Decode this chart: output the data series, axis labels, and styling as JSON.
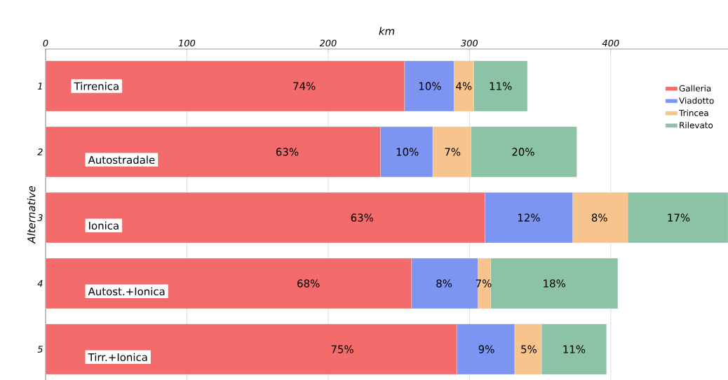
{
  "chart_data": {
    "type": "bar",
    "orientation": "horizontal",
    "stacked": true,
    "xlabel": "km",
    "ylabel": "Alternative",
    "categories": [
      "1",
      "2",
      "3",
      "4",
      "5"
    ],
    "series": [
      {
        "name": "Galleria",
        "color": "#f36b6b",
        "values": [
          254,
          237,
          311,
          259,
          291
        ]
      },
      {
        "name": "Viadotto",
        "color": "#7d95f2",
        "values": [
          35,
          37,
          62,
          47,
          41
        ]
      },
      {
        "name": "Trincea",
        "color": "#f8c48e",
        "values": [
          14,
          27,
          39,
          9,
          19
        ]
      },
      {
        "name": "Rilevato",
        "color": "#8cc3a6",
        "values": [
          38,
          75,
          71,
          90,
          46
        ]
      }
    ],
    "annotations": [
      "Tirrenica",
      "Autostradale",
      "Ionica",
      "Autost.+Ionica",
      "Tirr.+Ionica",
      {
        "text": "74%",
        "x": 183,
        "y": "1"
      },
      {
        "text": "10%",
        "x": 272,
        "y": "1"
      },
      {
        "text": "4%",
        "x": 296,
        "y": "1"
      },
      {
        "text": "11%",
        "x": 322,
        "y": "1"
      },
      {
        "text": "63%",
        "x": 171,
        "y": "2"
      },
      {
        "text": "10%",
        "x": 256,
        "y": "2"
      },
      {
        "text": "7%",
        "x": 288,
        "y": "2"
      },
      {
        "text": "20%",
        "x": 338,
        "y": "2"
      },
      {
        "text": "63%",
        "x": 224,
        "y": "3"
      },
      {
        "text": "12%",
        "x": 342,
        "y": "3"
      },
      {
        "text": "8%",
        "x": 392,
        "y": "3"
      },
      {
        "text": "17%",
        "x": 448,
        "y": "3"
      },
      {
        "text": "68%",
        "x": 186,
        "y": "4"
      },
      {
        "text": "8%",
        "x": 282,
        "y": "4"
      },
      {
        "text": "7%",
        "x": 310,
        "y": "4"
      },
      {
        "text": "18%",
        "x": 360,
        "y": "4"
      },
      {
        "text": "75%",
        "x": 210,
        "y": "5"
      },
      {
        "text": "9%",
        "x": 312,
        "y": "5"
      },
      {
        "text": "5%",
        "x": 342,
        "y": "5"
      },
      {
        "text": "11%",
        "x": 374,
        "y": "5"
      }
    ],
    "xlim": [
      0,
      483
    ],
    "xticks": [
      0,
      100,
      200,
      300,
      400
    ],
    "grid": "x",
    "legend": "top right"
  }
}
